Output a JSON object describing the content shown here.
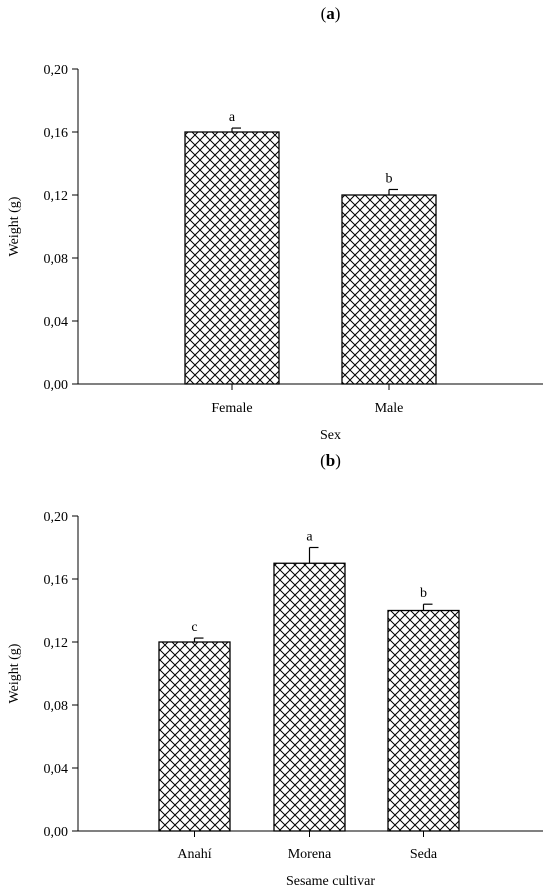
{
  "chart_data": [
    {
      "type": "bar",
      "panel": "a",
      "categories": [
        "Female",
        "Male"
      ],
      "values": [
        0.16,
        0.12
      ],
      "errors": [
        0.0025,
        0.0035
      ],
      "letters": [
        "a",
        "b"
      ],
      "xlabel": "Sex",
      "ylabel": "Weight (g)",
      "ylim": [
        0,
        0.2
      ],
      "yticks": [
        "0,00",
        "0,04",
        "0,08",
        "0,12",
        "0,16",
        "0,20"
      ],
      "grid": false,
      "colors": {
        "bar_fill": "#ffffff",
        "hatch": "#000000",
        "outline": "#000000"
      }
    },
    {
      "type": "bar",
      "panel": "b",
      "categories": [
        "Anahí",
        "Morena",
        "Seda"
      ],
      "values": [
        0.12,
        0.17,
        0.14
      ],
      "errors": [
        0.0025,
        0.01,
        0.004
      ],
      "letters": [
        "c",
        "a",
        "b"
      ],
      "xlabel": "Sesame cultivar",
      "ylabel": "Weight (g)",
      "ylim": [
        0,
        0.2
      ],
      "yticks": [
        "0,00",
        "0,04",
        "0,08",
        "0,12",
        "0,16",
        "0,20"
      ],
      "grid": false,
      "colors": {
        "bar_fill": "#ffffff",
        "hatch": "#000000",
        "outline": "#000000"
      }
    }
  ]
}
